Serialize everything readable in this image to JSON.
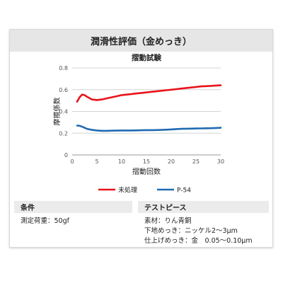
{
  "header": {
    "title": "潤滑性評価（金めっき）"
  },
  "chart_data": {
    "type": "line",
    "title": "摺動試験",
    "xlabel": "摺動回数",
    "ylabel": "摩擦係数",
    "xlim": [
      0,
      30
    ],
    "ylim": [
      0,
      0.8
    ],
    "x_ticks": [
      0,
      5,
      10,
      15,
      20,
      25,
      30
    ],
    "y_ticks": [
      0,
      0.2,
      0.4,
      0.6,
      0.8
    ],
    "x_tick_labels": [
      "0",
      "5",
      "10",
      "15",
      "20",
      "25",
      "30"
    ],
    "y_tick_labels": [
      "0",
      "0.2",
      "0.4",
      "0.6",
      "0.8"
    ],
    "grid": "horizontal",
    "legend_position": "bottom",
    "x": [
      1,
      1.5,
      2,
      2.5,
      3,
      4,
      5,
      6,
      7,
      8,
      9,
      10,
      11,
      12,
      13,
      14,
      15,
      16,
      17,
      18,
      19,
      20,
      21,
      22,
      23,
      24,
      25,
      26,
      27,
      28,
      29,
      30
    ],
    "series": [
      {
        "name": "未処理",
        "color": "#e8141a",
        "values": [
          0.49,
          0.53,
          0.555,
          0.55,
          0.535,
          0.51,
          0.505,
          0.51,
          0.52,
          0.53,
          0.54,
          0.55,
          0.555,
          0.56,
          0.565,
          0.57,
          0.575,
          0.58,
          0.585,
          0.59,
          0.595,
          0.6,
          0.605,
          0.61,
          0.615,
          0.62,
          0.625,
          0.63,
          0.632,
          0.635,
          0.638,
          0.64
        ]
      },
      {
        "name": "P-54",
        "color": "#1f6ab3",
        "values": [
          0.27,
          0.268,
          0.26,
          0.25,
          0.24,
          0.23,
          0.225,
          0.222,
          0.222,
          0.223,
          0.224,
          0.225,
          0.225,
          0.225,
          0.226,
          0.227,
          0.228,
          0.228,
          0.229,
          0.23,
          0.232,
          0.235,
          0.238,
          0.24,
          0.241,
          0.242,
          0.243,
          0.244,
          0.245,
          0.246,
          0.248,
          0.25
        ]
      }
    ]
  },
  "conditions": {
    "heading": "条件",
    "lines": [
      "測定荷重：50gf"
    ]
  },
  "test_piece": {
    "heading": "テストピース",
    "lines": [
      "素材：りん青銅",
      "下地めっき：ニッケル2〜3μm",
      "仕上げめっき：金　0.05〜0.10μm"
    ]
  }
}
